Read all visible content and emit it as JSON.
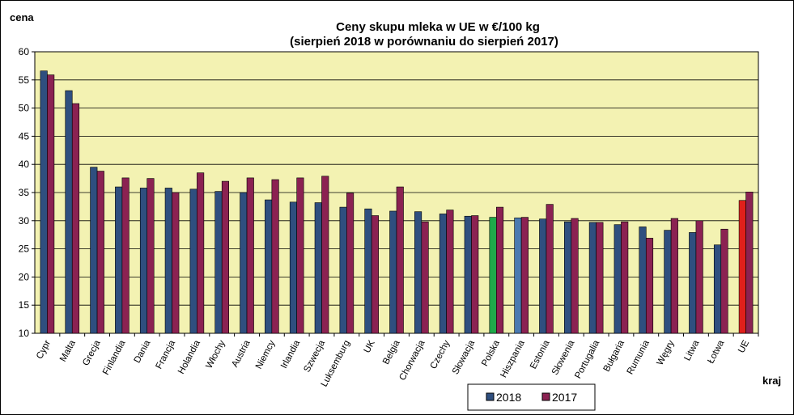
{
  "chart_data": {
    "type": "bar",
    "title": "Ceny skupu mleka  w UE w €/100 kg",
    "subtitle": "(sierpień 2018 w porównaniu do sierpień 2017)",
    "ylabel": "cena",
    "xlabel": "kraj",
    "ylim": [
      10,
      60
    ],
    "yticks": [
      10,
      15,
      20,
      25,
      30,
      35,
      40,
      45,
      50,
      55,
      60
    ],
    "grid": true,
    "legend_position": "bottom",
    "categories": [
      "Cypr",
      "Malta",
      "Grecja",
      "Finlandia",
      "Dania",
      "Francja",
      "Holandia",
      "Włochy",
      "Austria",
      "Niemcy",
      "Irlandia",
      "Szwecja",
      "Luksemburg",
      "UK",
      "Belgia",
      "Chorwacja",
      "Czechy",
      "Słowacja",
      "Polska",
      "Hiszpania",
      "Estonia",
      "Słowenia",
      "Portugalia",
      "Bułgaria",
      "Rumunia",
      "Węgry",
      "Litwa",
      "Łotwa",
      "UE"
    ],
    "series": [
      {
        "name": "2018",
        "color": "#2f4f7f",
        "values": [
          56.6,
          53.1,
          39.5,
          36.0,
          35.8,
          35.8,
          35.6,
          35.2,
          35.0,
          33.7,
          33.3,
          33.2,
          32.4,
          32.1,
          31.7,
          31.6,
          31.2,
          30.8,
          30.6,
          30.5,
          30.3,
          29.8,
          29.7,
          29.3,
          28.9,
          28.3,
          27.9,
          25.7,
          33.6
        ]
      },
      {
        "name": "2017",
        "color": "#8b2252",
        "values": [
          55.9,
          50.8,
          38.8,
          37.6,
          37.5,
          35.0,
          38.5,
          37.0,
          37.6,
          37.3,
          37.6,
          37.9,
          34.9,
          30.9,
          36.0,
          29.8,
          31.9,
          30.9,
          32.4,
          30.6,
          32.9,
          30.4,
          29.7,
          29.8,
          26.9,
          30.4,
          30.0,
          28.5,
          35.1
        ]
      }
    ],
    "highlights": [
      {
        "category": "Polska",
        "series": "2018",
        "color": "#1faa4a"
      },
      {
        "category": "Hiszpania",
        "series": "2018",
        "color": "#4a7ab0"
      },
      {
        "category": "UE",
        "series": "2018",
        "color": "#e0201b"
      }
    ],
    "plot_background": "#f3f2b2"
  }
}
